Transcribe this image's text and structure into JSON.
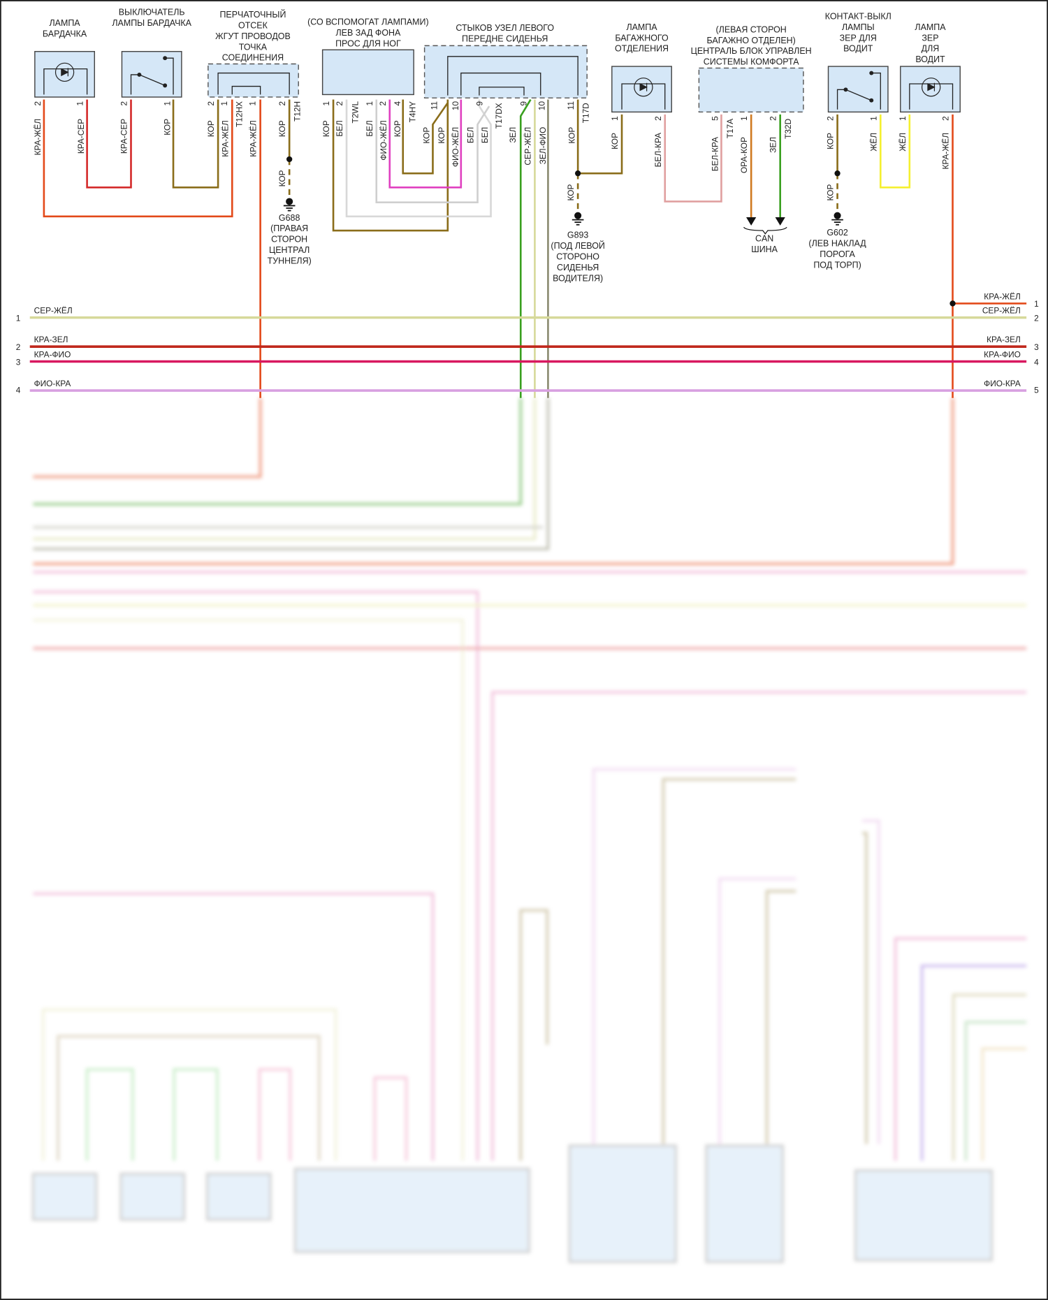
{
  "colors": {
    "box_fill": "#d5e7f7",
    "kra_zhel": "#e34a1a",
    "kra_ser": "#d42a2a",
    "kor": "#8a6d1a",
    "bel": "#cfcfcf",
    "fio_zhel": "#e040c0",
    "zel": "#3aa020",
    "ser_zhel": "#d6d99a",
    "zel_fio": "#8a8a70",
    "bel_kra": "#e0a0a0",
    "ora_kor": "#d07a20",
    "zhel": "#f5f030",
    "kra_zel": "#c0281c",
    "kra_fio": "#d81860",
    "fio_kra": "#d8a0e0"
  },
  "components": {
    "glovebox_lamp": {
      "title": [
        "ЛАМПА",
        "БАРДАЧКА"
      ],
      "icon": "lamp-led-icon",
      "pins": [
        "2",
        "1"
      ],
      "wires": [
        "КРА-ЖЁЛ",
        "КРА-СЕР"
      ]
    },
    "glovebox_switch": {
      "title": [
        "ВЫКЛЮЧАТЕЛЬ",
        "ЛАМПЫ БАРДАЧКА"
      ],
      "icon": "switch-icon",
      "pins": [
        "2",
        "1"
      ],
      "wires": [
        "КРА-СЕР",
        "КОР"
      ]
    },
    "glovebox_harness": {
      "title": [
        "ПЕРЧАТОЧНЫЙ",
        "ОТСЕК",
        "ЖГУТ ПРОВОДОВ",
        "ТОЧКА",
        "СОЕДИНЕНИЯ"
      ],
      "pins": [
        "2",
        "1",
        "1",
        "2"
      ],
      "connectors": [
        "T12HX",
        "T12H"
      ],
      "wires": [
        "КОР",
        "КРА-ЖЁЛ",
        "КРА-ЖЁЛ",
        "КОР"
      ]
    },
    "footwell_lamp": {
      "title": [
        "(СО ВСПОМОГАТ ЛАМПАМИ)",
        "ЛЕВ ЗАД ФОНА",
        "ПРОС ДЛЯ НОГ"
      ],
      "pins": [
        "1",
        "2",
        "1",
        "2",
        "4"
      ],
      "connectors": [
        "T2WL",
        "T4HY"
      ],
      "wires": [
        "КОР",
        "БЕЛ",
        "БЕЛ",
        "ФИО-ЖЁЛ",
        "КОР"
      ]
    },
    "seat_junction": {
      "title": [
        "СТЫКОВ УЗЕЛ ЛЕВОГО",
        "ПЕРЕДНЕ СИДЕНЬЯ"
      ],
      "pins": [
        "11",
        "10",
        "9",
        "9",
        "10",
        "11"
      ],
      "connectors": [
        "T17DX",
        "T17D"
      ],
      "wires": [
        "КОР",
        "КОР",
        "ФИО-ЖЁЛ",
        "БЕЛ",
        "БЕЛ",
        "ЗЕЛ",
        "СЕР-ЖЁЛ",
        "ЗЕЛ-ФИО",
        "КОР"
      ]
    },
    "trunk_lamp": {
      "title": [
        "ЛАМПА",
        "БАГАЖНОГО",
        "ОТДЕЛЕНИЯ"
      ],
      "icon": "lamp-led-icon",
      "pins": [
        "1",
        "2"
      ],
      "wires": [
        "КОР",
        "БЕЛ-КРА"
      ]
    },
    "comfort_module": {
      "title": [
        "(ЛЕВАЯ СТОРОН",
        "БАГАЖНО ОТДЕЛЕН)",
        "ЦЕНТРАЛЬ БЛОК УПРАВЛЕН",
        "СИСТЕМЫ КОМФОРТА"
      ],
      "pins": [
        "5",
        "1",
        "2"
      ],
      "connectors": [
        "T17A",
        "T32D"
      ],
      "wires": [
        "БЕЛ-КРА",
        "ОРА-КОР",
        "ЗЕЛ"
      ],
      "can_label": [
        "CAN",
        "ШИНА"
      ]
    },
    "mirror_switch": {
      "title": [
        "КОНТАКТ-ВЫКЛ",
        "ЛАМПЫ",
        "ЗЕР ДЛЯ",
        "ВОДИТ"
      ],
      "icon": "switch-icon",
      "pins": [
        "2",
        "1"
      ],
      "wires": [
        "КОР",
        "ЖЁЛ"
      ]
    },
    "mirror_lamp": {
      "title": [
        "ЛАМПА",
        "ЗЕР",
        "ДЛЯ",
        "ВОДИТ"
      ],
      "icon": "lamp-led-icon",
      "pins": [
        "1",
        "2"
      ],
      "wires": [
        "ЖЁЛ",
        "КРА-ЖЁЛ"
      ]
    }
  },
  "grounds": [
    {
      "id": "G688",
      "wire": "КОР",
      "location": [
        "(ПРАВАЯ",
        "СТОРОН",
        "ЦЕНТРАЛ",
        "ТУННЕЛЯ)"
      ]
    },
    {
      "id": "G893",
      "wire": "КОР",
      "location": [
        "(ПОД ЛЕВОЙ",
        "СТОРОНО",
        "СИДЕНЬЯ",
        "ВОДИТЕЛЯ)"
      ]
    },
    {
      "id": "G602",
      "wire": "КОР",
      "location": [
        "(ЛЕВ НАКЛАД",
        "ПОРОГА",
        "ПОД ТОРП)"
      ]
    }
  ],
  "bus": {
    "left": [
      {
        "num": "1",
        "label": "СЕР-ЖЁЛ"
      },
      {
        "num": "2",
        "label": "КРА-ЗЕЛ"
      },
      {
        "num": "3",
        "label": "КРА-ФИО"
      },
      {
        "num": "4",
        "label": "ФИО-КРА"
      }
    ],
    "right": [
      {
        "num": "1",
        "label": "КРА-ЖЁЛ"
      },
      {
        "num": "2",
        "label": "СЕР-ЖЁЛ"
      },
      {
        "num": "3",
        "label": "КРА-ЗЕЛ"
      },
      {
        "num": "4",
        "label": "КРА-ФИО"
      },
      {
        "num": "5",
        "label": "ФИО-КРА"
      }
    ]
  }
}
